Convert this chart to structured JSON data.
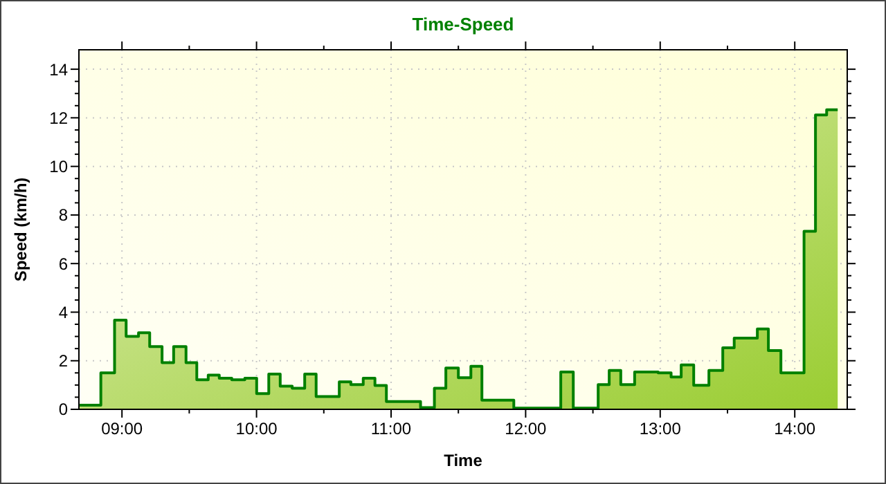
{
  "chart_data": {
    "type": "step",
    "title": "Time-Speed",
    "xlabel": "Time",
    "ylabel": "Speed (km/h)",
    "xlim": [
      8.68,
      14.39
    ],
    "ylim": [
      0,
      14.8
    ],
    "xticks": [
      {
        "value": 9,
        "label": "09:00"
      },
      {
        "value": 9.5,
        "label": null
      },
      {
        "value": 10,
        "label": "10:00"
      },
      {
        "value": 10.5,
        "label": null
      },
      {
        "value": 11,
        "label": "11:00"
      },
      {
        "value": 11.5,
        "label": null
      },
      {
        "value": 12,
        "label": "12:00"
      },
      {
        "value": 12.5,
        "label": null
      },
      {
        "value": 13,
        "label": "13:00"
      },
      {
        "value": 13.5,
        "label": null
      },
      {
        "value": 14,
        "label": "14:00"
      }
    ],
    "yticks": [
      0,
      {
        "value": 0.5,
        "label": null
      },
      {
        "value": 1,
        "label": null
      },
      {
        "value": 1.5,
        "label": null
      },
      2,
      {
        "value": 2.5,
        "label": null
      },
      {
        "value": 3,
        "label": null
      },
      {
        "value": 3.5,
        "label": null
      },
      4,
      {
        "value": 4.5,
        "label": null
      },
      {
        "value": 5,
        "label": null
      },
      {
        "value": 5.5,
        "label": null
      },
      6,
      {
        "value": 6.5,
        "label": null
      },
      {
        "value": 7,
        "label": null
      },
      {
        "value": 7.5,
        "label": null
      },
      8,
      {
        "value": 8.5,
        "label": null
      },
      {
        "value": 9,
        "label": null
      },
      {
        "value": 9.5,
        "label": null
      },
      10,
      {
        "value": 10.5,
        "label": null
      },
      {
        "value": 11,
        "label": null
      },
      {
        "value": 11.5,
        "label": null
      },
      12,
      {
        "value": 12.5,
        "label": null
      },
      {
        "value": 13,
        "label": null
      },
      {
        "value": 13.5,
        "label": null
      },
      14
    ],
    "grid": true,
    "series": [
      {
        "color": "#008000",
        "x": [
          8.68,
          8.843,
          8.945,
          9.031,
          9.123,
          9.206,
          9.298,
          9.384,
          9.476,
          9.556,
          9.641,
          9.723,
          9.816,
          9.913,
          10.001,
          10.091,
          10.176,
          10.265,
          10.358,
          10.443,
          10.615,
          10.701,
          10.793,
          10.88,
          10.965,
          11.219,
          11.322,
          11.407,
          11.5,
          11.593,
          11.675,
          11.912,
          12.261,
          12.354,
          12.539,
          12.621,
          12.707,
          12.81,
          12.985,
          13.081,
          13.156,
          13.249,
          13.362,
          13.465,
          13.55,
          13.722,
          13.804,
          13.897,
          14.069,
          14.154,
          14.237,
          14.319
        ],
        "values": [
          0.17,
          1.5,
          3.67,
          3.0,
          3.15,
          2.58,
          1.92,
          2.58,
          1.92,
          1.22,
          1.41,
          1.28,
          1.22,
          1.28,
          0.65,
          1.45,
          0.95,
          0.87,
          1.45,
          0.53,
          1.13,
          1.02,
          1.28,
          0.98,
          0.32,
          0.07,
          0.87,
          1.7,
          1.3,
          1.77,
          0.38,
          0.05,
          1.54,
          0.05,
          1.02,
          1.6,
          1.02,
          1.54,
          1.5,
          1.33,
          1.83,
          0.99,
          1.6,
          2.53,
          2.93,
          3.31,
          2.42,
          1.5,
          7.33,
          12.12,
          12.33,
          12.33
        ]
      }
    ]
  }
}
